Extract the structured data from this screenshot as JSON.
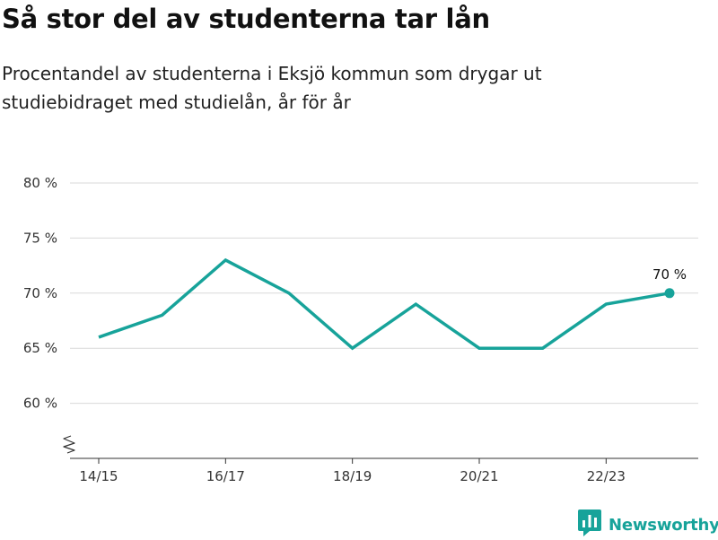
{
  "header": {
    "title": "Så stor del av studenterna tar lån",
    "subtitle": "Procentandel av studenterna i Eksjö kommun som drygar ut studiebidraget med studielån, år för år"
  },
  "brand": {
    "name": "Newsworthy",
    "icon": "newsworthy-logo-icon",
    "color": "#17a39a"
  },
  "chart_data": {
    "type": "line",
    "title": "Så stor del av studenterna tar lån",
    "subtitle": "Procentandel av studenterna i Eksjö kommun som drygar ut studiebidraget med studielån, år för år",
    "x": [
      "14/15",
      "15/16",
      "16/17",
      "17/18",
      "18/19",
      "19/20",
      "20/21",
      "21/22",
      "22/23",
      "23/24"
    ],
    "series": [
      {
        "values": [
          66,
          68,
          73,
          70,
          65,
          69,
          65,
          65,
          69,
          70
        ],
        "color": "#17a39a"
      }
    ],
    "x_tick_labels": [
      "14/15",
      "16/17",
      "18/19",
      "20/21",
      "22/23"
    ],
    "y_ticks": [
      60,
      65,
      70,
      75,
      80
    ],
    "y_tick_labels": [
      "60 %",
      "65 %",
      "70 %",
      "75 %",
      "80 %"
    ],
    "ylim": [
      55,
      80
    ],
    "y_axis_break": true,
    "grid": true,
    "annotations": [
      {
        "x": "23/24",
        "text": "70 %"
      }
    ],
    "xlabel": "",
    "ylabel": ""
  }
}
